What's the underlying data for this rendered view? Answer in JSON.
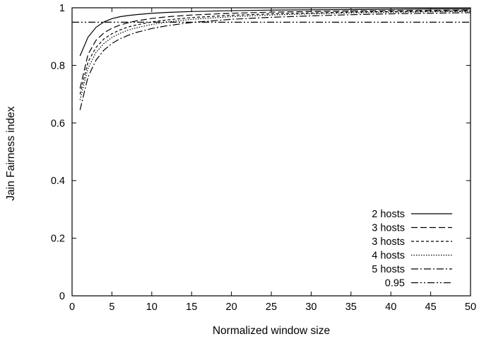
{
  "chart_data": {
    "type": "line",
    "title": "",
    "xlabel": "Normalized window size",
    "ylabel": "Jain Fairness index",
    "xlim": [
      0,
      50
    ],
    "ylim": [
      0,
      1
    ],
    "xticks": [
      0,
      5,
      10,
      15,
      20,
      25,
      30,
      35,
      40,
      45,
      50
    ],
    "yticks": [
      0,
      0.2,
      0.4,
      0.6,
      0.8,
      1
    ],
    "grid": false,
    "legend_position": "bottom-right",
    "series": [
      {
        "name": "2 hosts",
        "dash": "solid",
        "x": [
          1,
          2,
          3,
          4,
          5,
          6,
          7,
          8,
          10,
          12,
          15,
          20,
          25,
          30,
          35,
          40,
          45,
          50
        ],
        "y": [
          0.833,
          0.898,
          0.932,
          0.951,
          0.962,
          0.969,
          0.973,
          0.976,
          0.981,
          0.984,
          0.987,
          0.99,
          0.992,
          0.993,
          0.994,
          0.995,
          0.996,
          0.996
        ]
      },
      {
        "name": "3 hosts",
        "dash": "9,4",
        "x": [
          1,
          2,
          3,
          4,
          5,
          6,
          7,
          8,
          10,
          12,
          15,
          20,
          25,
          30,
          35,
          40,
          45,
          50
        ],
        "y": [
          0.72,
          0.838,
          0.887,
          0.913,
          0.929,
          0.94,
          0.948,
          0.954,
          0.963,
          0.969,
          0.975,
          0.981,
          0.985,
          0.987,
          0.989,
          0.99,
          0.991,
          0.992
        ]
      },
      {
        "name": "3 hosts",
        "dash": "4,3",
        "x": [
          1,
          2,
          3,
          4,
          5,
          6,
          7,
          8,
          10,
          12,
          15,
          20,
          25,
          30,
          35,
          40,
          45,
          50
        ],
        "y": [
          0.7,
          0.812,
          0.862,
          0.892,
          0.91,
          0.923,
          0.933,
          0.94,
          0.951,
          0.958,
          0.966,
          0.974,
          0.979,
          0.982,
          0.985,
          0.987,
          0.988,
          0.989
        ]
      },
      {
        "name": "4 hosts",
        "dash": "1.5,2",
        "x": [
          1,
          2,
          3,
          4,
          5,
          6,
          7,
          8,
          10,
          12,
          15,
          20,
          25,
          30,
          35,
          40,
          45,
          50
        ],
        "y": [
          0.68,
          0.79,
          0.845,
          0.876,
          0.897,
          0.911,
          0.922,
          0.93,
          0.942,
          0.951,
          0.96,
          0.969,
          0.975,
          0.979,
          0.982,
          0.984,
          0.986,
          0.987
        ]
      },
      {
        "name": "5 hosts",
        "dash": "10,3,2,3",
        "x": [
          1,
          2,
          3,
          4,
          5,
          6,
          7,
          8,
          10,
          12,
          15,
          20,
          25,
          30,
          35,
          40,
          45,
          50
        ],
        "y": [
          0.645,
          0.76,
          0.818,
          0.853,
          0.876,
          0.892,
          0.904,
          0.914,
          0.928,
          0.938,
          0.949,
          0.96,
          0.967,
          0.972,
          0.976,
          0.979,
          0.981,
          0.983
        ]
      },
      {
        "name": "0.95",
        "dash": "10,3,2,3,2,3",
        "x": [
          0,
          50
        ],
        "y": [
          0.95,
          0.95
        ]
      }
    ]
  }
}
